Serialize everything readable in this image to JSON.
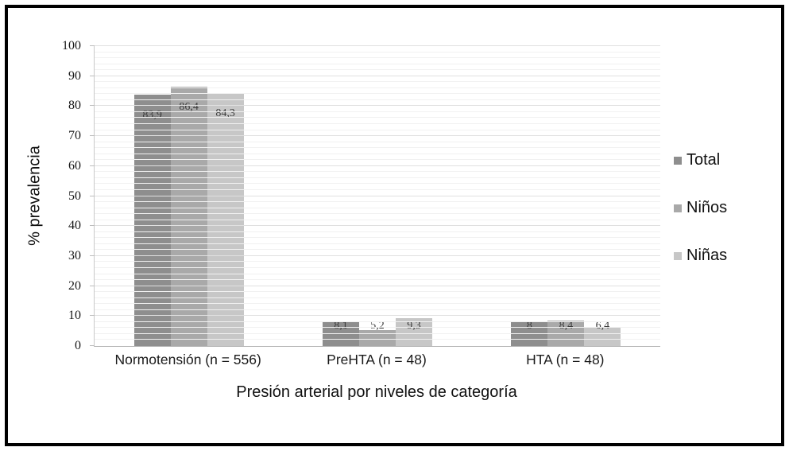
{
  "chart_data": {
    "type": "bar",
    "title": "",
    "ylabel": "% prevalencia",
    "xlabel": "Presión arterial por niveles de categoría",
    "ylim": [
      0,
      100
    ],
    "yticks": [
      0,
      10,
      20,
      30,
      40,
      50,
      60,
      70,
      80,
      90,
      100
    ],
    "minor_grid_step": 2,
    "grid": true,
    "legend_position": "right",
    "categories": [
      "Normotensión (n = 556)",
      "PreHTA (n = 48)",
      "HTA (n = 48)"
    ],
    "series": [
      {
        "name": "Total",
        "color": "#8e8e8e",
        "values": [
          83.9,
          8.1,
          8
        ],
        "value_labels": [
          "83,9",
          "8,1",
          "8"
        ]
      },
      {
        "name": "Niños",
        "color": "#a9a9a9",
        "values": [
          86.4,
          5.2,
          8.4
        ],
        "value_labels": [
          "86,4",
          "5,2",
          "8,4"
        ]
      },
      {
        "name": "Niñas",
        "color": "#c7c7c7",
        "values": [
          84.3,
          9.3,
          6.4
        ],
        "value_labels": [
          "84,3",
          "9,3",
          "6,4"
        ]
      }
    ]
  }
}
